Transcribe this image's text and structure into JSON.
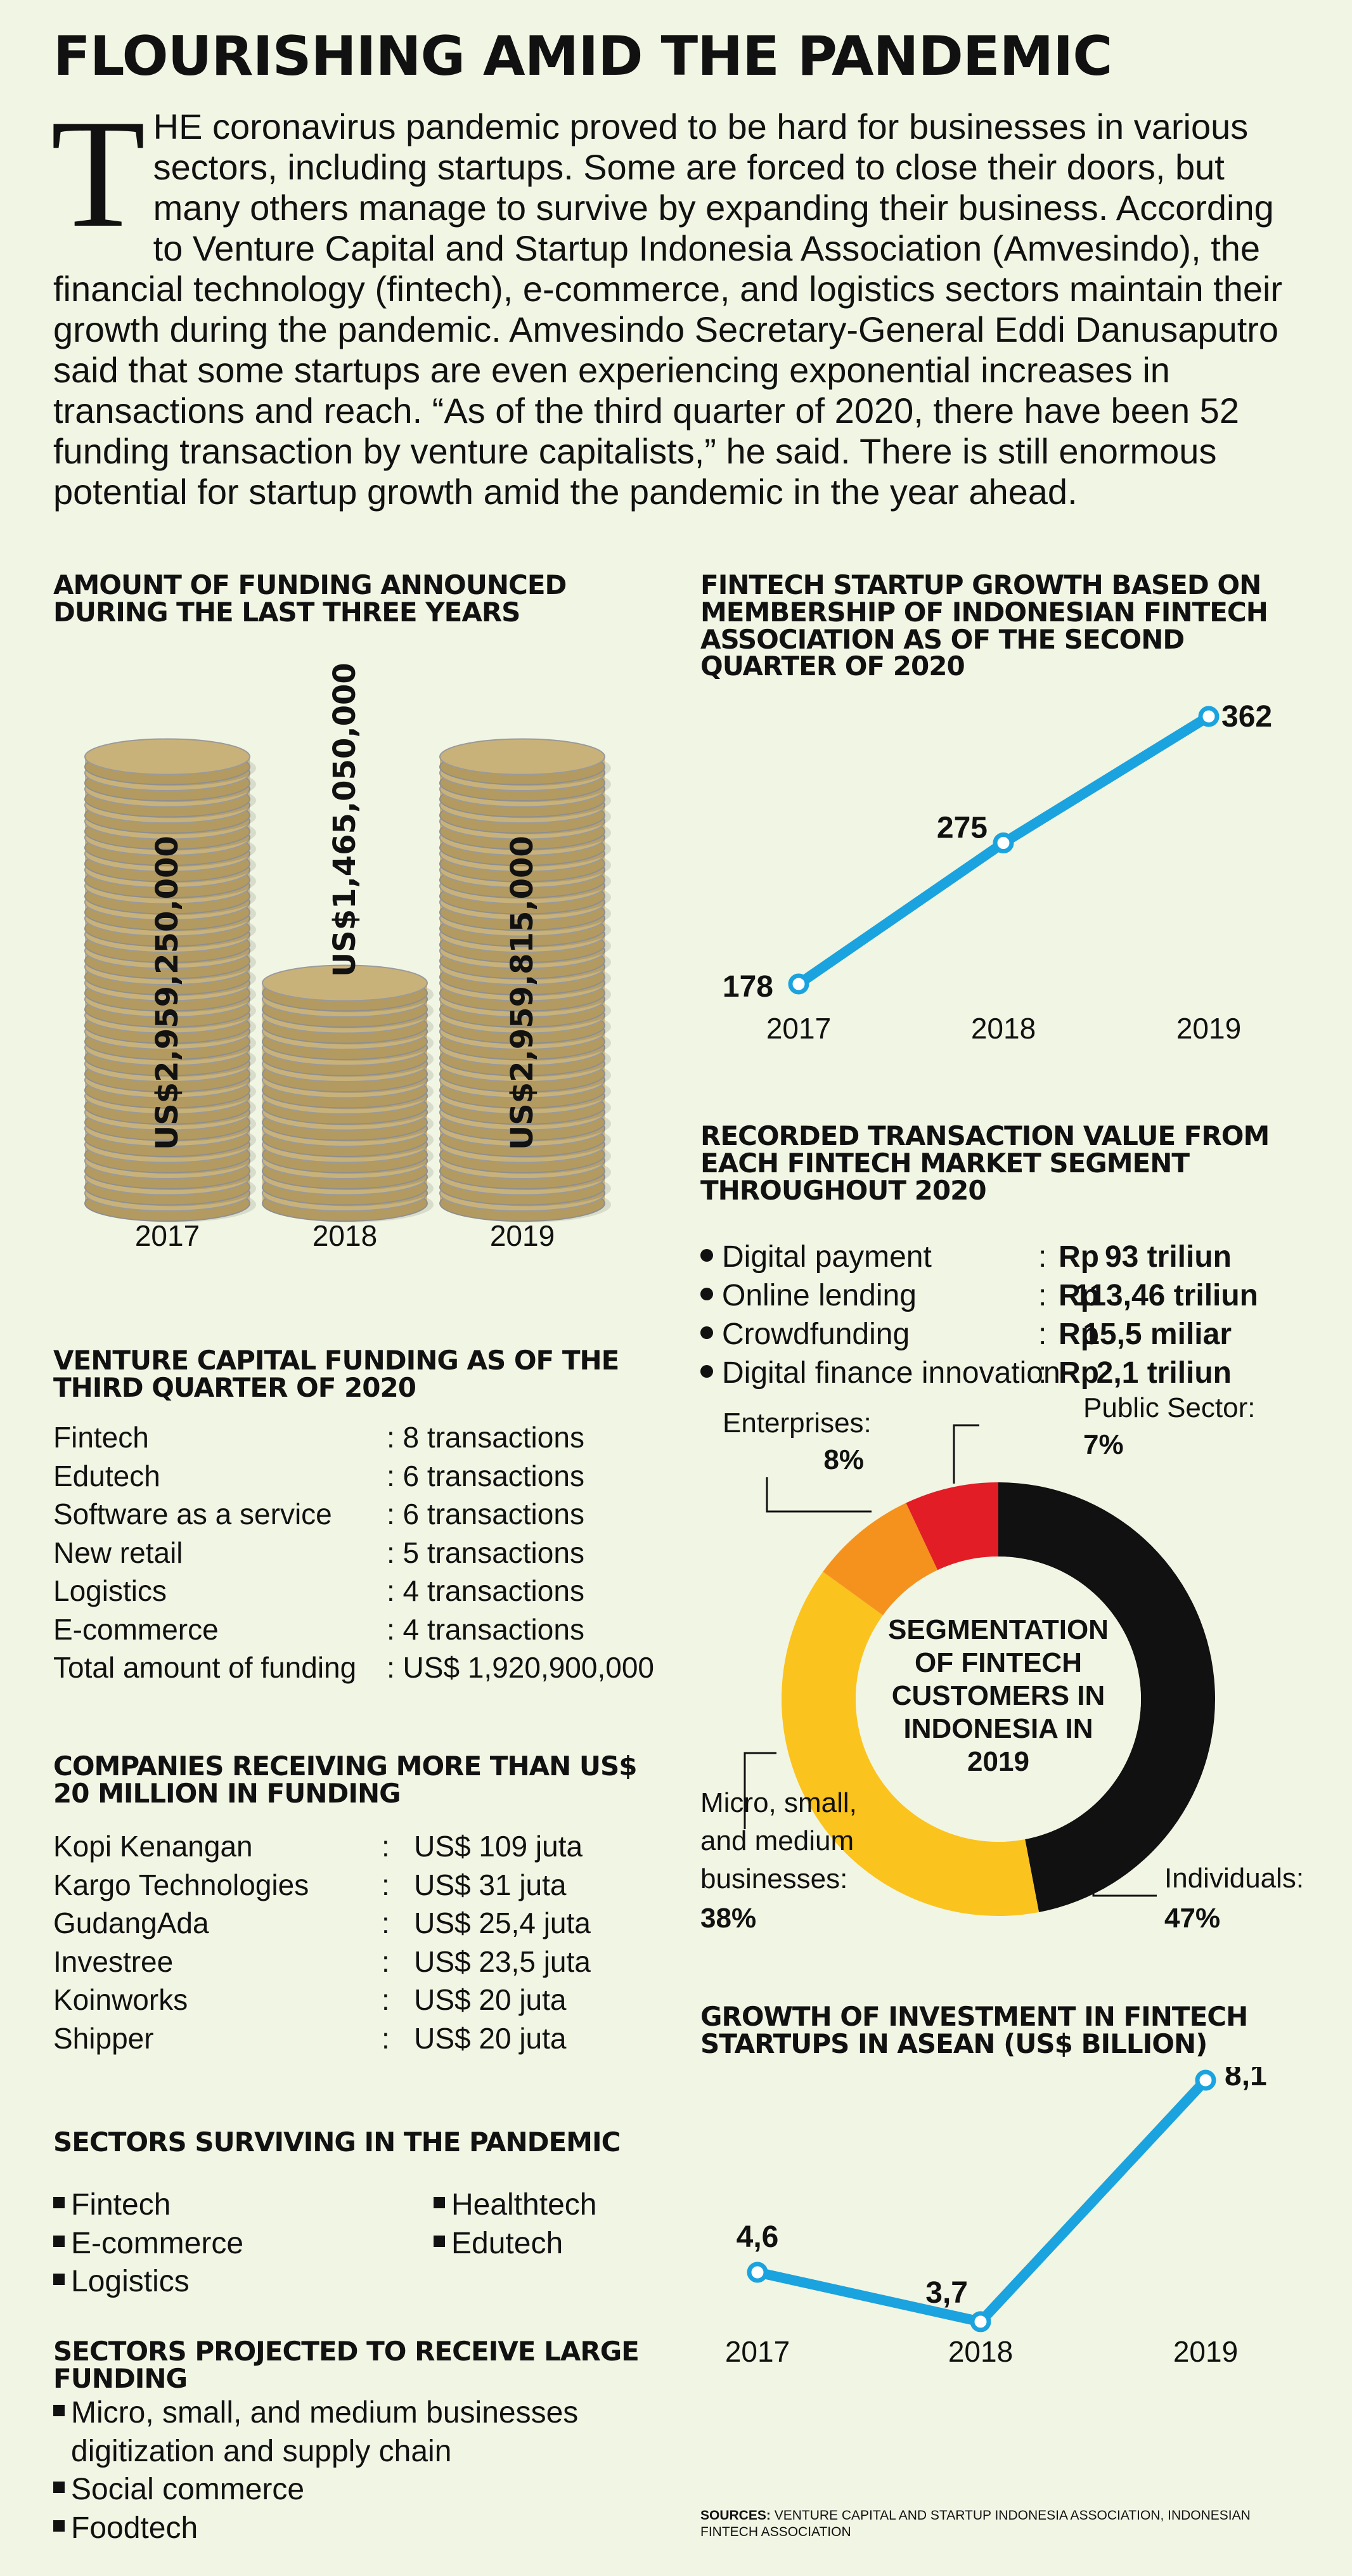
{
  "title": "FLOURISHING AMID THE PANDEMIC",
  "intro": {
    "dropcap": "T",
    "text": "HE coronavirus pandemic proved to be hard for businesses in various sectors, including startups. Some are forced to close their doors, but many others manage to survive by expanding their business. According to Venture Capital and Startup Indonesia Association (Amvesindo), the financial technology (fintech), e-commerce, and logistics sectors maintain their growth during the pandemic. Amvesindo Secretary-General Eddi Danusaputro said that some startups are even experiencing exponential increases in transactions and reach. “As of the third quarter of 2020, there have been 52 funding transaction by venture capitalists,” he said. There is still enormous potential for startup growth amid the pandemic in the year ahead."
  },
  "funding": {
    "title": "AMOUNT OF FUNDING ANNOUNCED DURING THE LAST THREE YEARS",
    "coin_color": "#c9b27a"
  },
  "membership": {
    "title": "FINTECH STARTUP GROWTH BASED ON MEMBERSHIP OF INDONESIAN FINTECH ASSOCIATION AS OF THE SECOND QUARTER OF 2020",
    "line_color": "#1aa3df"
  },
  "transactions": {
    "title": "RECORDED TRANSACTION VALUE FROM EACH FINTECH MARKET SEGMENT THROUGHOUT 2020",
    "items": [
      {
        "label": "Digital payment",
        "sep": ":",
        "cur": "Rp",
        "value": "93 triliun"
      },
      {
        "label": "Online lending",
        "sep": ":",
        "cur": "Rp",
        "value": "113,46 triliun"
      },
      {
        "label": "Crowdfunding",
        "sep": ":",
        "cur": "Rp",
        "value": "15,5 miliar"
      },
      {
        "label": "Digital finance innovation",
        "sep": ":",
        "cur": "Rp",
        "value": "2,1 triliun"
      }
    ]
  },
  "segmentation": {
    "center_lines": [
      "SEGMENTATION",
      "OF FINTECH",
      "CUSTOMERS IN",
      "INDONESIA IN",
      "2019"
    ],
    "labels": {
      "enterprises": {
        "name": "Enterprises:",
        "pct": "8%"
      },
      "public": {
        "name": "Public Sector:",
        "pct": "7%"
      },
      "msme": {
        "lines": [
          "Micro, small,",
          "and medium",
          "businesses:"
        ],
        "pct": "38%"
      },
      "individuals": {
        "name": "Individuals:",
        "pct": "47%"
      }
    }
  },
  "vc": {
    "title": "VENTURE CAPITAL FUNDING AS OF THE THIRD QUARTER OF 2020",
    "rows": [
      {
        "label": "Fintech",
        "value": ": 8 transactions"
      },
      {
        "label": "Edutech",
        "value": ": 6 transactions"
      },
      {
        "label": "Software as a service",
        "value": ": 6 transactions"
      },
      {
        "label": "New retail",
        "value": ": 5 transactions"
      },
      {
        "label": "Logistics",
        "value": ": 4 transactions"
      },
      {
        "label": "E-commerce",
        "value": ": 4 transactions"
      },
      {
        "label": "Total amount of funding",
        "value": ": US$ 1,920,900,000"
      }
    ]
  },
  "companies": {
    "title": "COMPANIES RECEIVING MORE THAN US$ 20 MILLION IN FUNDING",
    "rows": [
      {
        "label": "Kopi Kenangan",
        "value": ":   US$ 109 juta"
      },
      {
        "label": "Kargo Technologies",
        "value": ":   US$ 31 juta"
      },
      {
        "label": "GudangAda",
        "value": ":   US$ 25,4 juta"
      },
      {
        "label": "Investree",
        "value": ":   US$ 23,5 juta"
      },
      {
        "label": "Koinworks",
        "value": ":   US$ 20 juta"
      },
      {
        "label": "Shipper",
        "value": ":   US$ 20 juta"
      }
    ]
  },
  "asean": {
    "title": "GROWTH OF INVESTMENT IN FINTECH STARTUPS IN ASEAN (US$ BILLION)",
    "line_color": "#1aa3df"
  },
  "surviving": {
    "title": "SECTORS SURVIVING IN THE PANDEMIC",
    "col1": [
      "Fintech",
      "E-commerce",
      "Logistics"
    ],
    "col2": [
      "Healthtech",
      "Edutech"
    ]
  },
  "projected": {
    "title": "SECTORS PROJECTED TO RECEIVE LARGE FUNDING",
    "items": [
      [
        "Micro, small, and medium businesses",
        "digitization and supply chain"
      ],
      [
        "Social commerce"
      ],
      [
        "Foodtech"
      ]
    ]
  },
  "sources": {
    "label": "SOURCES:",
    "text": "VENTURE CAPITAL AND STARTUP INDONESIA ASSOCIATION, INDONESIAN FINTECH ASSOCIATION"
  },
  "chart_data": [
    {
      "type": "bar",
      "title": "AMOUNT OF FUNDING ANNOUNCED DURING THE LAST THREE YEARS",
      "categories": [
        "2017",
        "2018",
        "2019"
      ],
      "values": [
        2959250000,
        1465050000,
        2959815000
      ],
      "labels": [
        "US$2,959,250,000",
        "US$1,465,050,000",
        "US$2,959,815,000"
      ]
    },
    {
      "type": "line",
      "title": "FINTECH STARTUP GROWTH BASED ON MEMBERSHIP OF INDONESIAN FINTECH ASSOCIATION AS OF THE SECOND QUARTER OF 2020",
      "x": [
        "2017",
        "2018",
        "2019"
      ],
      "values": [
        178,
        275,
        362
      ],
      "labels": [
        "178",
        "275",
        "362"
      ]
    },
    {
      "type": "pie",
      "title": "SEGMENTATION OF FINTECH CUSTOMERS IN INDONESIA IN 2019",
      "slices": [
        {
          "name": "Individuals",
          "value": 47,
          "color": "#111111"
        },
        {
          "name": "Micro, small, and medium businesses",
          "value": 38,
          "color": "#fbc31d"
        },
        {
          "name": "Enterprises",
          "value": 8,
          "color": "#f5921e"
        },
        {
          "name": "Public Sector",
          "value": 7,
          "color": "#e21d26"
        }
      ]
    },
    {
      "type": "line",
      "title": "GROWTH OF INVESTMENT IN FINTECH STARTUPS IN ASEAN (US$ BILLION)",
      "x": [
        "2017",
        "2018",
        "2019"
      ],
      "values": [
        4.6,
        3.7,
        8.1
      ],
      "labels": [
        "4,6",
        "3,7",
        "8,1"
      ]
    }
  ]
}
